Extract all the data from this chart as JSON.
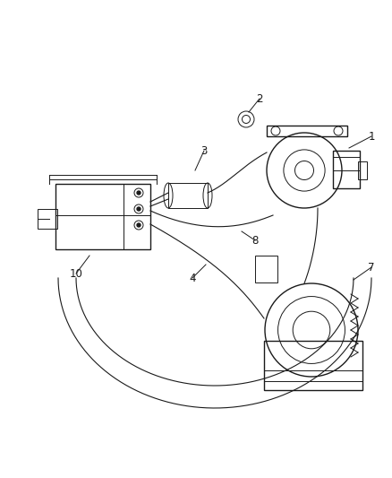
{
  "bg_color": "#ffffff",
  "line_color": "#1a1a1a",
  "label_color": "#1a1a1a",
  "fig_width": 4.39,
  "fig_height": 5.33,
  "dpi": 100,
  "lw_main": 1.0,
  "lw_thin": 0.7,
  "lw_cable": 0.8,
  "label_fs": 8.5
}
